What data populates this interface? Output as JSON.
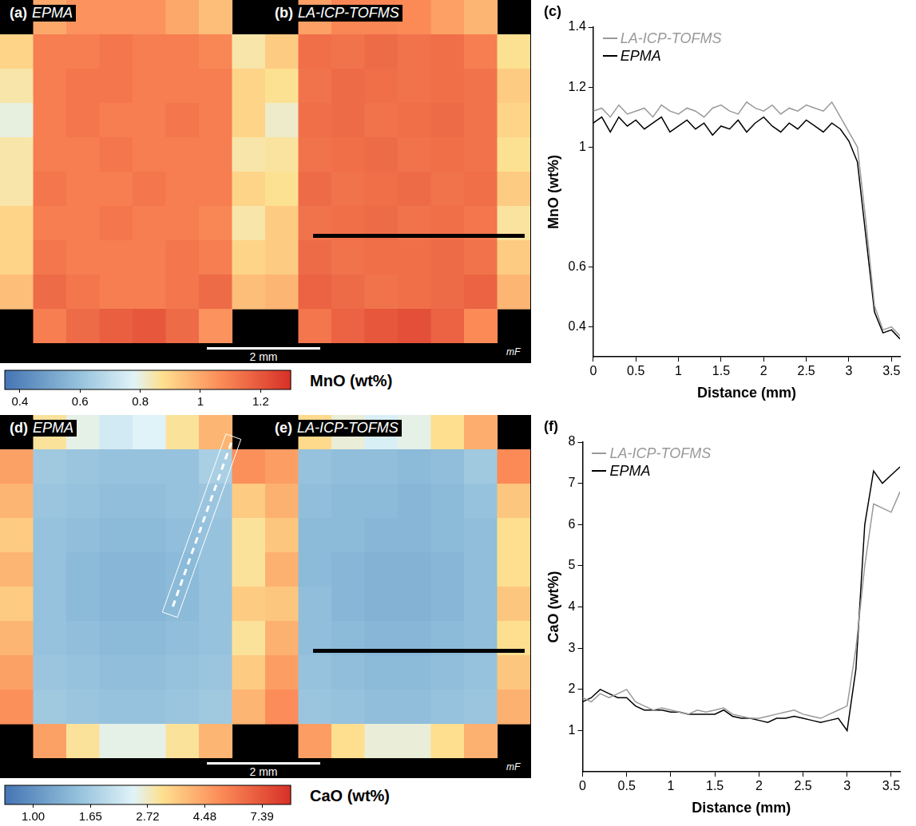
{
  "chart_data": [
    {
      "type": "heatmap",
      "panel": "(a)",
      "title": "EPMA",
      "tick_labels": false,
      "xlim": [
        0,
        4.7
      ],
      "ylim": [
        0,
        6.2
      ],
      "scale_bar": {
        "label": "2 mm",
        "length": 2
      },
      "colorbar": {
        "label": "MnO (wt%)",
        "lim": [
          0.35,
          1.3
        ],
        "ticks": [
          0.4,
          0.6,
          0.8,
          1,
          1.2
        ],
        "log": false
      },
      "cells": [
        [
          null,
          1.0,
          1.05,
          1.05,
          1.05,
          1.0,
          0.95,
          null
        ],
        [
          0.9,
          1.1,
          1.1,
          1.12,
          1.1,
          1.1,
          1.08,
          0.85
        ],
        [
          0.85,
          1.1,
          1.12,
          1.12,
          1.1,
          1.1,
          1.1,
          0.9
        ],
        [
          0.8,
          1.1,
          1.12,
          1.1,
          1.1,
          1.12,
          1.1,
          0.9
        ],
        [
          0.85,
          1.1,
          1.1,
          1.12,
          1.1,
          1.1,
          1.1,
          0.85
        ],
        [
          0.85,
          1.12,
          1.1,
          1.1,
          1.12,
          1.1,
          1.1,
          0.9
        ],
        [
          0.9,
          1.1,
          1.1,
          1.12,
          1.1,
          1.1,
          1.08,
          0.85
        ],
        [
          0.9,
          1.12,
          1.1,
          1.1,
          1.1,
          1.12,
          1.1,
          0.9
        ],
        [
          0.95,
          1.15,
          1.12,
          1.1,
          1.1,
          1.12,
          1.15,
          0.95
        ],
        [
          null,
          1.1,
          1.15,
          1.18,
          1.2,
          1.15,
          1.05,
          null
        ]
      ]
    },
    {
      "type": "heatmap",
      "panel": "(b)",
      "title": "LA-ICP-TOFMS",
      "tick_labels": false,
      "annotation": "mF",
      "xlim": [
        0,
        4.7
      ],
      "ylim": [
        0,
        6.2
      ],
      "transect": {
        "x": [
          0.85,
          4.6
        ],
        "y": [
          4.26,
          4.26
        ],
        "line_style": "solid"
      },
      "cells": [
        [
          null,
          1.02,
          1.08,
          1.08,
          1.07,
          1.02,
          0.97,
          null
        ],
        [
          0.92,
          1.14,
          1.13,
          1.15,
          1.13,
          1.14,
          1.1,
          0.87
        ],
        [
          0.87,
          1.13,
          1.15,
          1.14,
          1.13,
          1.14,
          1.13,
          0.92
        ],
        [
          0.82,
          1.14,
          1.15,
          1.13,
          1.14,
          1.15,
          1.13,
          0.9
        ],
        [
          0.86,
          1.13,
          1.14,
          1.15,
          1.13,
          1.14,
          1.13,
          0.87
        ],
        [
          0.87,
          1.15,
          1.13,
          1.14,
          1.15,
          1.13,
          1.14,
          0.92
        ],
        [
          0.92,
          1.13,
          1.14,
          1.15,
          1.13,
          1.14,
          1.12,
          0.86
        ],
        [
          0.92,
          1.15,
          1.13,
          1.14,
          1.14,
          1.15,
          1.13,
          0.92
        ],
        [
          0.97,
          1.17,
          1.15,
          1.13,
          1.14,
          1.15,
          1.17,
          0.97
        ],
        [
          null,
          1.12,
          1.17,
          1.2,
          1.22,
          1.17,
          1.07,
          null
        ]
      ]
    },
    {
      "type": "line",
      "panel": "(c)",
      "x_label": "Distance (mm)",
      "y_label": "MnO (wt%)",
      "xlim": [
        0,
        3.6
      ],
      "ylim": [
        0.3,
        1.4
      ],
      "xticks": [
        0,
        0.5,
        1,
        1.5,
        2,
        2.5,
        3,
        3.5
      ],
      "yticks": [
        0.4,
        0.6,
        1,
        1.2,
        1.4
      ],
      "grid": false,
      "legend": "upper left",
      "x": [
        0,
        0.1,
        0.2,
        0.3,
        0.4,
        0.5,
        0.6,
        0.7,
        0.8,
        0.9,
        1,
        1.1,
        1.2,
        1.3,
        1.4,
        1.5,
        1.6,
        1.7,
        1.8,
        1.9,
        2,
        2.1,
        2.2,
        2.3,
        2.4,
        2.5,
        2.6,
        2.7,
        2.8,
        2.9,
        3,
        3.1,
        3.2,
        3.3,
        3.4,
        3.5,
        3.6
      ],
      "series": [
        {
          "name": "LA-ICP-TOFMS",
          "color": "#999999",
          "values": [
            1.12,
            1.13,
            1.1,
            1.14,
            1.11,
            1.12,
            1.13,
            1.1,
            1.14,
            1.12,
            1.11,
            1.13,
            1.12,
            1.1,
            1.13,
            1.14,
            1.12,
            1.11,
            1.15,
            1.13,
            1.12,
            1.14,
            1.11,
            1.13,
            1.12,
            1.14,
            1.13,
            1.12,
            1.15,
            1.1,
            1.05,
            1.0,
            0.75,
            0.47,
            0.39,
            0.4,
            0.37
          ]
        },
        {
          "name": "EPMA",
          "color": "#000000",
          "values": [
            1.08,
            1.1,
            1.05,
            1.1,
            1.07,
            1.09,
            1.06,
            1.08,
            1.1,
            1.05,
            1.07,
            1.09,
            1.06,
            1.08,
            1.04,
            1.07,
            1.06,
            1.09,
            1.05,
            1.08,
            1.1,
            1.07,
            1.05,
            1.08,
            1.06,
            1.09,
            1.07,
            1.05,
            1.08,
            1.06,
            1.02,
            0.95,
            0.7,
            0.45,
            0.38,
            0.39,
            0.36
          ]
        }
      ]
    },
    {
      "type": "heatmap",
      "panel": "(d)",
      "title": "EPMA",
      "tick_labels": false,
      "xlim": [
        0,
        4.7
      ],
      "ylim": [
        0,
        6.2
      ],
      "scale_bar": {
        "label": "2 mm",
        "length": 2
      },
      "transect": {
        "x": [
          4.1,
          3.05
        ],
        "y": [
          0.5,
          3.5
        ],
        "line_style": "dashed"
      },
      "colorbar": {
        "label": "CaO (wt%)",
        "lim": [
          0.78,
          9.49
        ],
        "ticks": [
          {
            "value": 1,
            "label": "1.00"
          },
          1.65,
          2.72,
          4.48,
          7.39
        ],
        "log": true
      },
      "cells": [
        [
          null,
          3.0,
          2.5,
          2.2,
          2.4,
          3.0,
          4.0,
          null
        ],
        [
          4.5,
          1.6,
          1.55,
          1.5,
          1.5,
          1.5,
          1.7,
          5.0
        ],
        [
          4.0,
          1.55,
          1.5,
          1.45,
          1.45,
          1.5,
          1.55,
          3.5
        ],
        [
          3.5,
          1.5,
          1.45,
          1.4,
          1.4,
          1.45,
          1.5,
          3.0
        ],
        [
          4.0,
          1.5,
          1.4,
          1.35,
          1.35,
          1.4,
          1.5,
          3.0
        ],
        [
          3.5,
          1.5,
          1.4,
          1.35,
          1.35,
          1.4,
          1.5,
          3.5
        ],
        [
          4.0,
          1.5,
          1.45,
          1.4,
          1.4,
          1.45,
          1.5,
          3.0
        ],
        [
          4.5,
          1.55,
          1.5,
          1.45,
          1.45,
          1.5,
          1.55,
          3.5
        ],
        [
          5.0,
          1.6,
          1.55,
          1.5,
          1.5,
          1.55,
          1.6,
          4.0
        ],
        [
          null,
          4.5,
          3.0,
          2.5,
          2.5,
          3.0,
          4.0,
          null
        ]
      ]
    },
    {
      "type": "heatmap",
      "panel": "(e)",
      "title": "LA-ICP-TOFMS",
      "tick_labels": false,
      "annotation": "mF",
      "xlim": [
        0,
        4.7
      ],
      "ylim": [
        0,
        6.2
      ],
      "transect": {
        "x": [
          0.85,
          4.6
        ],
        "y": [
          4.26,
          4.26
        ],
        "line_style": "solid"
      },
      "cells": [
        [
          null,
          3.2,
          2.6,
          2.3,
          2.5,
          3.1,
          4.2,
          null
        ],
        [
          4.6,
          1.5,
          1.45,
          1.45,
          1.4,
          1.45,
          1.6,
          5.2
        ],
        [
          4.1,
          1.45,
          1.4,
          1.4,
          1.35,
          1.4,
          1.5,
          3.6
        ],
        [
          3.6,
          1.4,
          1.4,
          1.35,
          1.35,
          1.4,
          1.45,
          3.1
        ],
        [
          4.1,
          1.4,
          1.35,
          1.3,
          1.3,
          1.35,
          1.45,
          3.1
        ],
        [
          3.6,
          1.45,
          1.35,
          1.3,
          1.3,
          1.35,
          1.45,
          3.6
        ],
        [
          4.1,
          1.45,
          1.4,
          1.35,
          1.35,
          1.4,
          1.45,
          3.1
        ],
        [
          4.6,
          1.5,
          1.45,
          1.4,
          1.4,
          1.45,
          1.5,
          3.6
        ],
        [
          5.1,
          1.55,
          1.5,
          1.45,
          1.45,
          1.5,
          1.55,
          4.1
        ],
        [
          null,
          4.6,
          3.1,
          2.6,
          2.6,
          3.1,
          4.1,
          null
        ]
      ]
    },
    {
      "type": "line",
      "panel": "(f)",
      "x_label": "Distance (mm)",
      "y_label": "CaO (wt%)",
      "xlim": [
        0,
        3.6
      ],
      "ylim": [
        0,
        8
      ],
      "xticks": [
        0,
        0.5,
        1,
        1.5,
        2,
        2.5,
        3,
        3.5
      ],
      "yticks": [
        1,
        2,
        3,
        4,
        5,
        6,
        7,
        8
      ],
      "grid": false,
      "legend": "upper left",
      "x": [
        0,
        0.1,
        0.2,
        0.3,
        0.4,
        0.5,
        0.6,
        0.7,
        0.8,
        0.9,
        1,
        1.1,
        1.2,
        1.3,
        1.4,
        1.5,
        1.6,
        1.7,
        1.8,
        1.9,
        2,
        2.1,
        2.2,
        2.3,
        2.4,
        2.5,
        2.6,
        2.7,
        2.8,
        2.9,
        3,
        3.1,
        3.2,
        3.3,
        3.4,
        3.5,
        3.6
      ],
      "series": [
        {
          "name": "LA-ICP-TOFMS",
          "color": "#999999",
          "values": [
            1.8,
            1.7,
            1.9,
            1.8,
            1.9,
            2.0,
            1.7,
            1.6,
            1.5,
            1.55,
            1.5,
            1.45,
            1.4,
            1.5,
            1.45,
            1.5,
            1.55,
            1.4,
            1.35,
            1.3,
            1.3,
            1.35,
            1.4,
            1.45,
            1.5,
            1.4,
            1.35,
            1.3,
            1.4,
            1.5,
            1.6,
            3.0,
            5.0,
            6.5,
            6.4,
            6.3,
            6.8
          ]
        },
        {
          "name": "EPMA",
          "color": "#000000",
          "values": [
            1.7,
            1.8,
            2.0,
            1.9,
            1.8,
            1.8,
            1.6,
            1.5,
            1.5,
            1.5,
            1.45,
            1.45,
            1.4,
            1.4,
            1.4,
            1.4,
            1.5,
            1.35,
            1.3,
            1.3,
            1.25,
            1.2,
            1.3,
            1.3,
            1.35,
            1.3,
            1.25,
            1.2,
            1.25,
            1.3,
            1.0,
            2.5,
            6.0,
            7.3,
            7.0,
            7.2,
            7.4
          ]
        }
      ]
    }
  ]
}
